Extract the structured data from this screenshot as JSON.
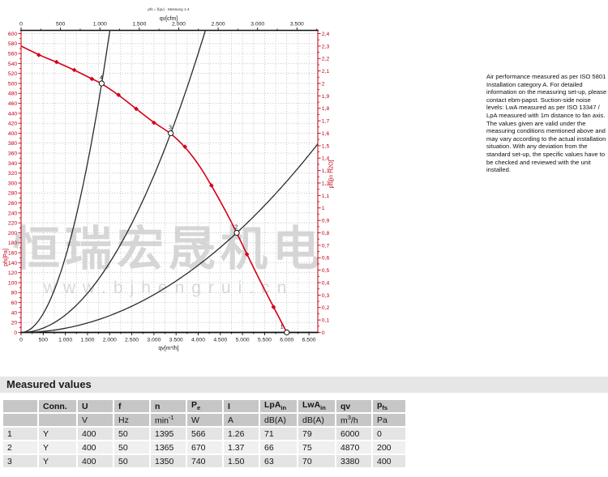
{
  "note": {
    "text": "Air performance measured as per ISO 5801 Installation category A. For detailed information on the measuring set-up, please contact ebm-papst. Suction-side noise levels: LwA measured as per ISO 13347 / LpA measured with 1m distance to fan axis. The values given are valid under the measuring conditions mentioned above and may vary according to the actual installation situation. With any deviation from the standard set-up, the specific values have to be checked and reviewed with the unit installed."
  },
  "chart_data": {
    "type": "line",
    "caption": "pfs = f(qv) · Messung 1-4",
    "axes": {
      "bottom": {
        "label": "qv[m³/h]",
        "min": 0,
        "max": 6700,
        "tick_step": 500,
        "minor_step": 250,
        "tick_labels": [
          "0",
          "500",
          "1.000",
          "1.500",
          "2.000",
          "2.500",
          "3.000",
          "3.500",
          "4.000",
          "4.500",
          "5.000",
          "5.500",
          "6.000",
          "6.500"
        ]
      },
      "top": {
        "label": "qv[cfm]",
        "min": 0,
        "max": 3500,
        "tick_step": 500,
        "minor_step": 250,
        "cfm_scale": 1.78,
        "tick_labels": [
          "0",
          "500",
          "1.000",
          "1.500",
          "2.000",
          "2.500",
          "3.000",
          "3.500"
        ]
      },
      "left": {
        "label": "pfs[Pa]",
        "min": 0,
        "max": 600,
        "tick_step": 20,
        "minor_step": 10,
        "tick_labels": [
          "0",
          "20",
          "40",
          "60",
          "80",
          "100",
          "120",
          "140",
          "160",
          "180",
          "200",
          "220",
          "240",
          "260",
          "280",
          "300",
          "320",
          "340",
          "360",
          "380",
          "400",
          "420",
          "440",
          "460",
          "480",
          "500",
          "520",
          "540",
          "560",
          "580",
          "600"
        ]
      },
      "right": {
        "label": "pfs[in H2O]",
        "min": 0,
        "max": 2.4,
        "tick_step": 0.1,
        "minor_step": 0.05,
        "tick_labels": [
          "0",
          "0,1",
          "0,2",
          "0,3",
          "0,4",
          "0,5",
          "0,6",
          "0,7",
          "0,8",
          "0,9",
          "1",
          "1,1",
          "1,2",
          "1,3",
          "1,4",
          "1,5",
          "1,6",
          "1,7",
          "1,8",
          "1,9",
          "2",
          "2,1",
          "2,2",
          "2,3",
          "2,4"
        ]
      }
    },
    "grid": {
      "on": true,
      "style": "dotted",
      "color": "#b3b3b3"
    },
    "fan_curve": {
      "name": "air-performance-curve",
      "color": "#d30017",
      "points": [
        [
          0,
          575
        ],
        [
          400,
          557
        ],
        [
          800,
          543
        ],
        [
          1200,
          527
        ],
        [
          1600,
          509
        ],
        [
          1820,
          500
        ],
        [
          2200,
          477
        ],
        [
          2600,
          449
        ],
        [
          3000,
          421
        ],
        [
          3380,
          400
        ],
        [
          3700,
          373
        ],
        [
          4000,
          339
        ],
        [
          4300,
          295
        ],
        [
          4600,
          247
        ],
        [
          4870,
          200
        ],
        [
          5100,
          157
        ],
        [
          5400,
          103
        ],
        [
          5700,
          51
        ],
        [
          6000,
          0
        ]
      ],
      "markers": [
        [
          400,
          557
        ],
        [
          800,
          543
        ],
        [
          1200,
          527
        ],
        [
          1600,
          509
        ],
        [
          2200,
          477
        ],
        [
          2600,
          449
        ],
        [
          3000,
          421
        ],
        [
          3700,
          373
        ],
        [
          4300,
          295
        ],
        [
          5100,
          157
        ],
        [
          5700,
          51
        ]
      ]
    },
    "system_curves": {
      "color": "#2b2b2b",
      "through_points": [
        [
          1820,
          500
        ],
        [
          3380,
          400
        ],
        [
          4870,
          200
        ]
      ]
    },
    "operating_points": [
      {
        "label": "1",
        "qv": 6000,
        "pfs": 0
      },
      {
        "label": "2",
        "qv": 4870,
        "pfs": 200
      },
      {
        "label": "3",
        "qv": 3380,
        "pfs": 400
      },
      {
        "label": "4",
        "qv": 1820,
        "pfs": 500
      }
    ],
    "watermark": {
      "line1": "恒瑞宏晟机电",
      "line2": "www.bjhengrui.cn",
      "color": "#d2d2d2"
    }
  },
  "table": {
    "section_title": "Measured values",
    "columns": [
      {
        "id": "idx",
        "header": [],
        "unit": []
      },
      {
        "id": "conn",
        "header": [
          [
            "Conn.",
            ""
          ]
        ],
        "unit": []
      },
      {
        "id": "u",
        "header": [
          [
            "U",
            ""
          ]
        ],
        "unit": [
          [
            "V",
            ""
          ]
        ]
      },
      {
        "id": "f",
        "header": [
          [
            "f",
            ""
          ]
        ],
        "unit": [
          [
            "Hz",
            ""
          ]
        ]
      },
      {
        "id": "n",
        "header": [
          [
            "n",
            ""
          ]
        ],
        "unit": [
          [
            "min",
            ""
          ],
          [
            "-1",
            "sup"
          ]
        ]
      },
      {
        "id": "pe",
        "header": [
          [
            "P",
            ""
          ],
          [
            "e",
            "sub"
          ]
        ],
        "unit": [
          [
            "W",
            ""
          ]
        ]
      },
      {
        "id": "i",
        "header": [
          [
            "I",
            ""
          ]
        ],
        "unit": [
          [
            "A",
            ""
          ]
        ]
      },
      {
        "id": "lpa",
        "header": [
          [
            "LpA",
            ""
          ],
          [
            "in",
            "sub"
          ]
        ],
        "unit": [
          [
            "dB(A)",
            ""
          ]
        ]
      },
      {
        "id": "lwa",
        "header": [
          [
            "LwA",
            ""
          ],
          [
            "in",
            "sub"
          ]
        ],
        "unit": [
          [
            "dB(A)",
            ""
          ]
        ]
      },
      {
        "id": "qv",
        "header": [
          [
            "qv",
            ""
          ]
        ],
        "unit": [
          [
            "m",
            ""
          ],
          [
            "3",
            "sup"
          ],
          [
            "/h",
            ""
          ]
        ]
      },
      {
        "id": "pfs",
        "header": [
          [
            "p",
            ""
          ],
          [
            "fs",
            "sub"
          ]
        ],
        "unit": [
          [
            "Pa",
            ""
          ]
        ]
      }
    ],
    "rows": [
      [
        "1",
        "Y",
        "400",
        "50",
        "1395",
        "566",
        "1.26",
        "71",
        "79",
        "6000",
        "0"
      ],
      [
        "2",
        "Y",
        "400",
        "50",
        "1365",
        "670",
        "1.37",
        "66",
        "75",
        "4870",
        "200"
      ],
      [
        "3",
        "Y",
        "400",
        "50",
        "1350",
        "740",
        "1.50",
        "63",
        "70",
        "3380",
        "400"
      ]
    ]
  }
}
